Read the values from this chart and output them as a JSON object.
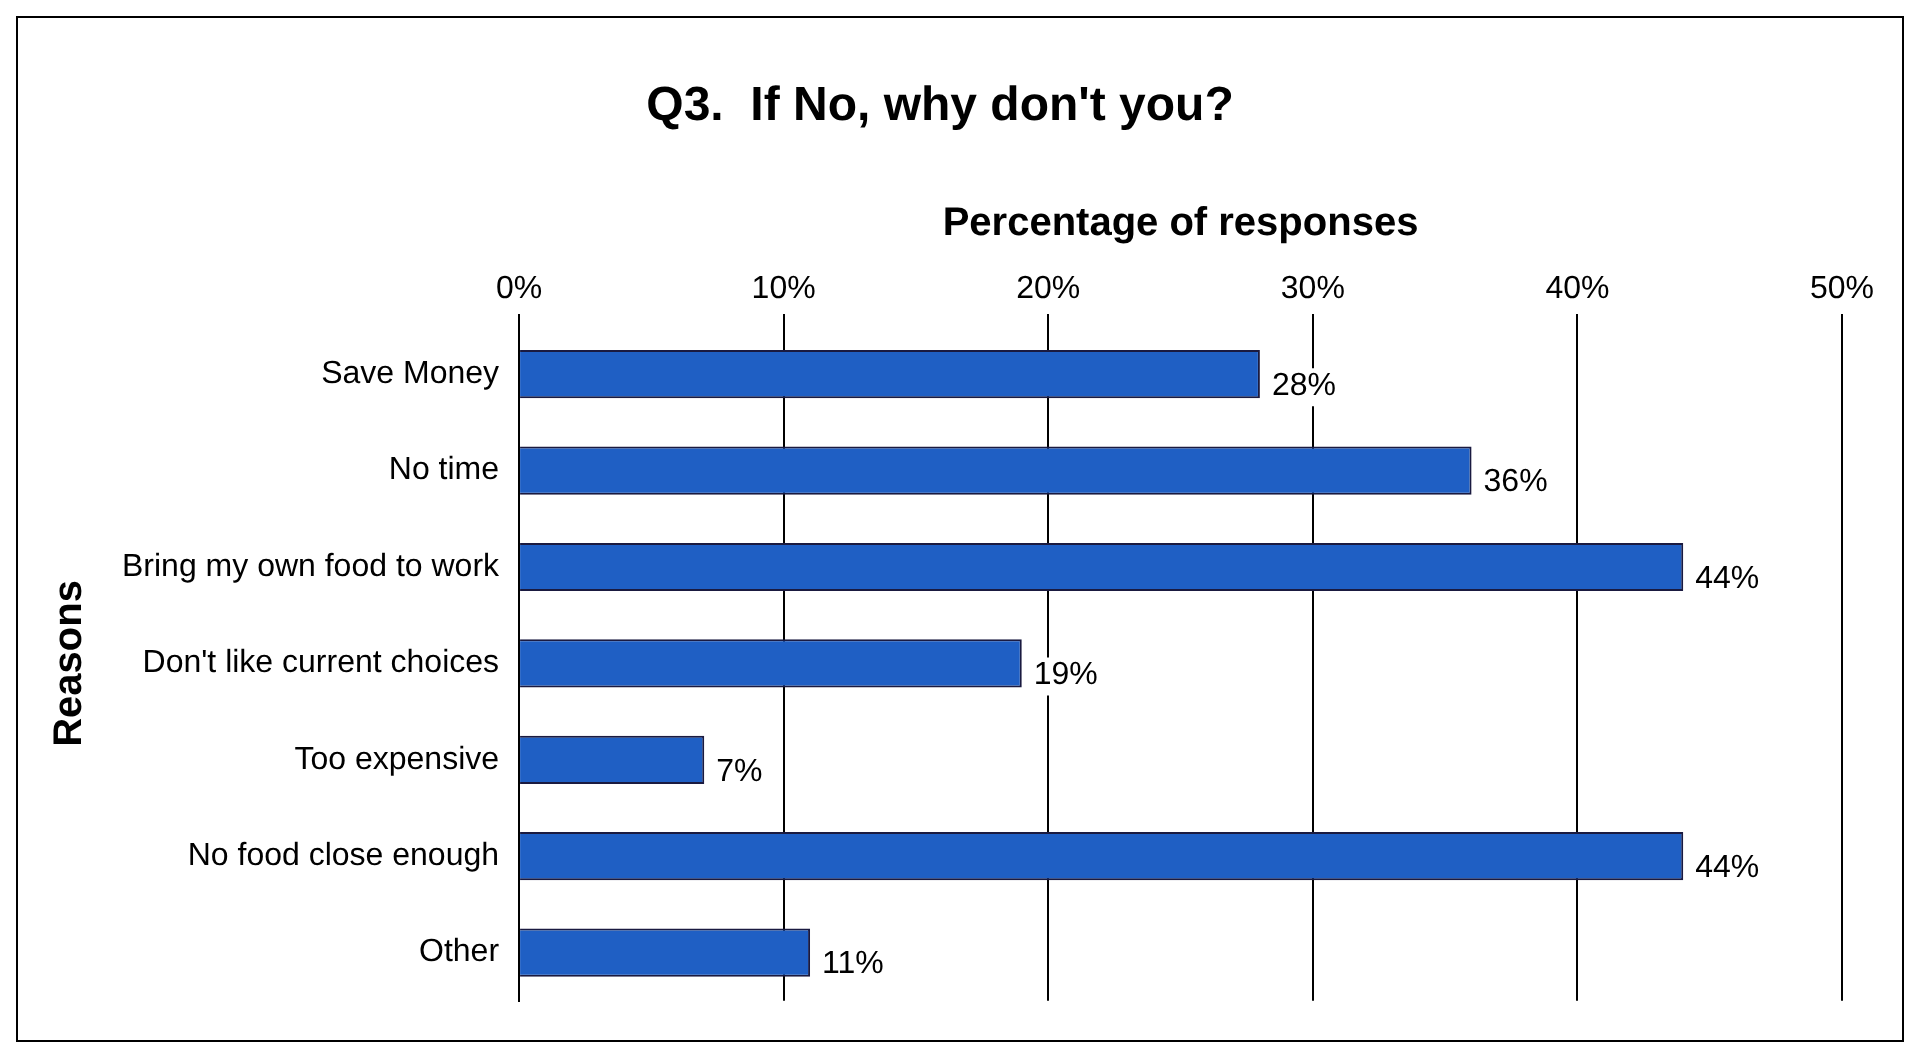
{
  "chart_data": {
    "type": "bar",
    "orientation": "horizontal",
    "title": "Q3.  If No, why don't you?",
    "xlabel": "Percentage of responses",
    "ylabel": "Reasons",
    "categories": [
      "Save Money",
      "No time",
      "Bring my own food to work",
      "Don't like current choices",
      "Too expensive",
      "No food close enough",
      "Other"
    ],
    "values": [
      28,
      36,
      44,
      19,
      7,
      44,
      11
    ],
    "value_labels": [
      "28%",
      "36%",
      "44%",
      "19%",
      "7%",
      "44%",
      "11%"
    ],
    "color": "#1f5fc4",
    "xlim": [
      0,
      50
    ],
    "xticks": [
      {
        "value": 0,
        "label": "0%"
      },
      {
        "value": 10,
        "label": "10%"
      },
      {
        "value": 20,
        "label": "20%"
      },
      {
        "value": 30,
        "label": "30%"
      },
      {
        "value": 40,
        "label": "40%"
      },
      {
        "value": 50,
        "label": "50%"
      }
    ],
    "grid": "x",
    "legend": false
  }
}
